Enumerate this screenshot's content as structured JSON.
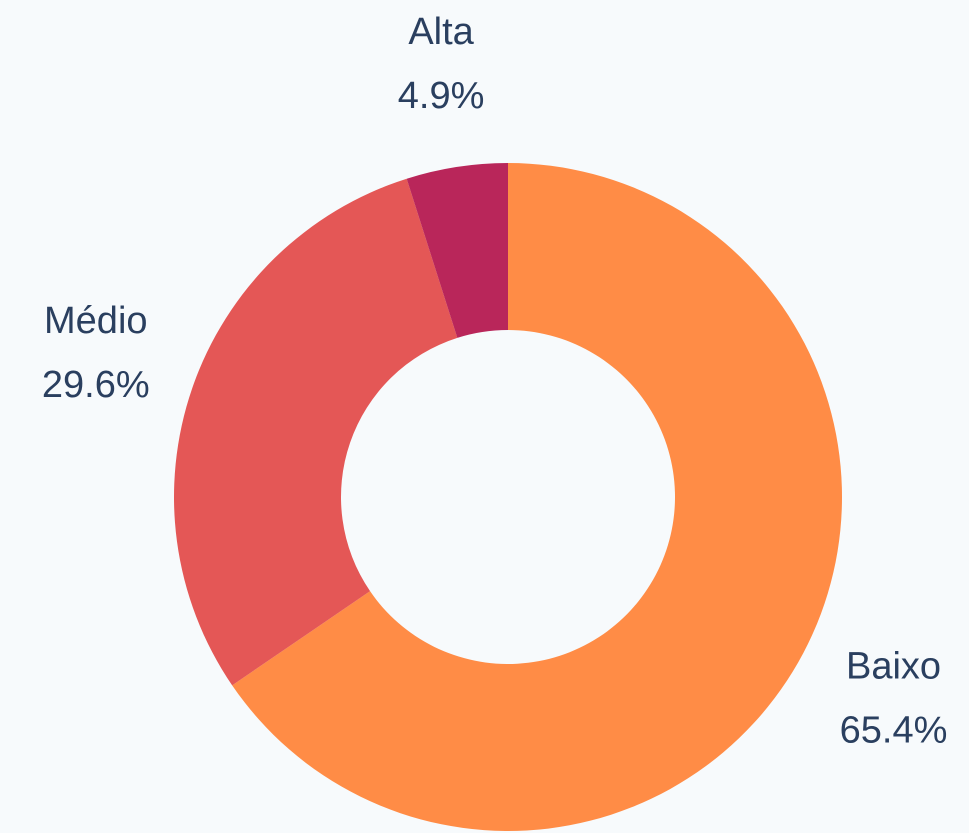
{
  "chart_data": {
    "type": "donut",
    "categories": [
      "Baixo",
      "Médio",
      "Alta"
    ],
    "values": [
      65.4,
      29.6,
      4.9
    ],
    "value_labels": [
      "65.4%",
      "29.6%",
      "4.9%"
    ],
    "colors": [
      "#ff8c46",
      "#e45756",
      "#b9265a"
    ]
  }
}
